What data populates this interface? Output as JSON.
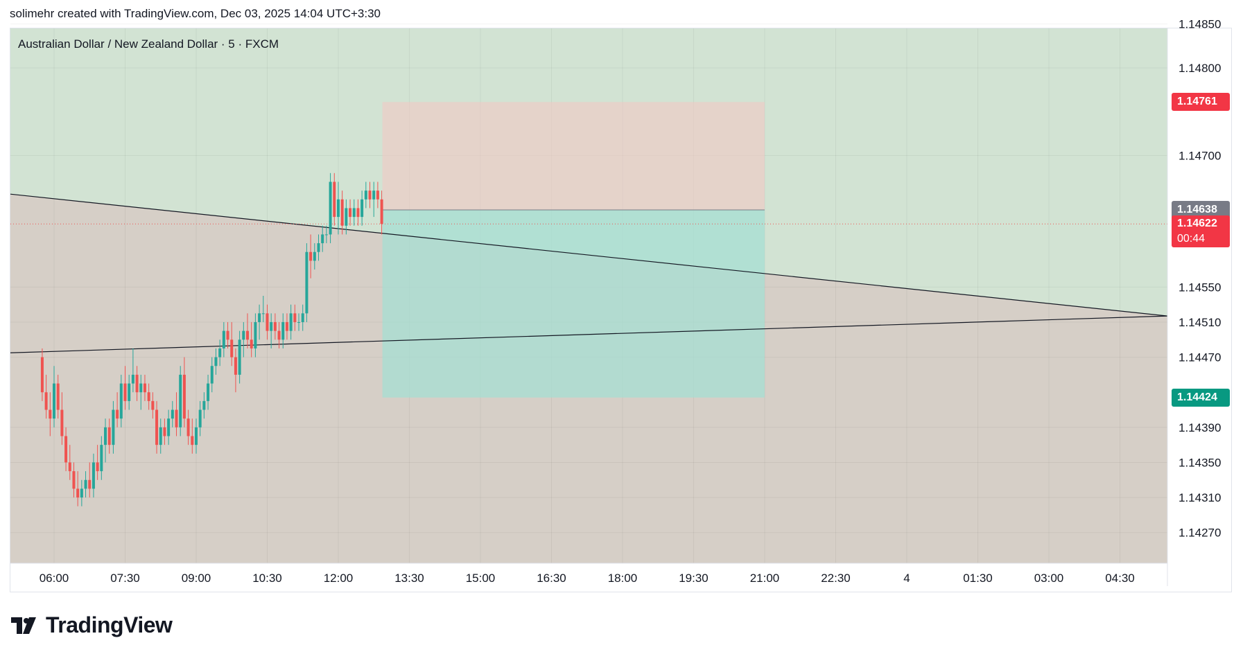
{
  "header": {
    "text": "solimehr created with TradingView.com, Dec 03, 2025 14:04 UTC+3:30"
  },
  "symbol_title": "Australian Dollar / New Zealand Dollar · 5 · FXCM",
  "logo": {
    "text": "TradingView",
    "icon": "tradingview-logo-icon"
  },
  "colors": {
    "up": "#26a69a",
    "down": "#ef5350",
    "stop_zone": "#f4c7c3",
    "target_zone": "#a5dfd3",
    "bg_upper": "#d2e3d3",
    "bg_lower": "#d6cfc7",
    "stop_tag": "#f23645",
    "entry_tag": "#787b86",
    "target_tag": "#089981"
  },
  "price_tags": {
    "stop": {
      "value": "1.14761"
    },
    "entry": {
      "value": "1.14638"
    },
    "last": {
      "value": "1.14622",
      "countdown": "00:44"
    },
    "target": {
      "value": "1.14424"
    }
  },
  "chart_data": {
    "type": "candlestick",
    "title": "Australian Dollar / New Zealand Dollar · 5 · FXCM",
    "y_axis": {
      "side": "right",
      "ticks": [
        "1.14850",
        "1.14800",
        "1.14700",
        "1.14550",
        "1.14510",
        "1.14470",
        "1.14390",
        "1.14350",
        "1.14310",
        "1.14270"
      ]
    },
    "x_axis": {
      "ticks": [
        "06:00",
        "07:30",
        "09:00",
        "10:30",
        "12:00",
        "13:30",
        "15:00",
        "16:30",
        "18:00",
        "19:30",
        "21:00",
        "22:30",
        "4",
        "01:30",
        "03:00",
        "04:30"
      ]
    },
    "ylim": [
      1.14235,
      1.14845
    ],
    "grid": true,
    "series": [
      {
        "ohlc": [
          [
            1.1447,
            1.1448,
            1.1442,
            1.1443
          ],
          [
            1.1443,
            1.1445,
            1.144,
            1.1441
          ],
          [
            1.1441,
            1.1443,
            1.1438,
            1.144
          ],
          [
            1.144,
            1.1446,
            1.1439,
            1.1444
          ],
          [
            1.1444,
            1.1445,
            1.144,
            1.1441
          ],
          [
            1.1441,
            1.1443,
            1.1437,
            1.1438
          ],
          [
            1.1438,
            1.1439,
            1.1434,
            1.1435
          ],
          [
            1.1435,
            1.1437,
            1.1433,
            1.1434
          ],
          [
            1.1434,
            1.1435,
            1.1431,
            1.1432
          ],
          [
            1.1432,
            1.1434,
            1.143,
            1.1431
          ],
          [
            1.1431,
            1.1433,
            1.143,
            1.1432
          ],
          [
            1.1432,
            1.1434,
            1.1431,
            1.1433
          ],
          [
            1.1433,
            1.1435,
            1.1431,
            1.1432
          ],
          [
            1.1432,
            1.1436,
            1.1431,
            1.1435
          ],
          [
            1.1435,
            1.1437,
            1.1433,
            1.1434
          ],
          [
            1.1434,
            1.1438,
            1.1433,
            1.1437
          ],
          [
            1.1437,
            1.144,
            1.1435,
            1.1439
          ],
          [
            1.1439,
            1.144,
            1.1436,
            1.1437
          ],
          [
            1.1437,
            1.1442,
            1.1436,
            1.1441
          ],
          [
            1.1441,
            1.1443,
            1.1439,
            1.144
          ],
          [
            1.144,
            1.1445,
            1.1439,
            1.1444
          ],
          [
            1.1444,
            1.1446,
            1.1441,
            1.1442
          ],
          [
            1.1442,
            1.1445,
            1.1441,
            1.1444
          ],
          [
            1.1444,
            1.1448,
            1.1443,
            1.1445
          ],
          [
            1.1445,
            1.1446,
            1.1442,
            1.1443
          ],
          [
            1.1443,
            1.1445,
            1.1441,
            1.1444
          ],
          [
            1.1444,
            1.1445,
            1.1442,
            1.1443
          ],
          [
            1.1443,
            1.1444,
            1.1441,
            1.1442
          ],
          [
            1.1442,
            1.1443,
            1.144,
            1.1441
          ],
          [
            1.1441,
            1.1442,
            1.1436,
            1.1437
          ],
          [
            1.1437,
            1.144,
            1.1436,
            1.1439
          ],
          [
            1.1439,
            1.144,
            1.1437,
            1.1438
          ],
          [
            1.1438,
            1.1441,
            1.1437,
            1.144
          ],
          [
            1.144,
            1.1442,
            1.1439,
            1.1441
          ],
          [
            1.1441,
            1.1443,
            1.1438,
            1.1439
          ],
          [
            1.1439,
            1.1446,
            1.1438,
            1.1445
          ],
          [
            1.1445,
            1.1447,
            1.1439,
            1.144
          ],
          [
            1.144,
            1.1441,
            1.1437,
            1.1438
          ],
          [
            1.1438,
            1.144,
            1.1436,
            1.1437
          ],
          [
            1.1437,
            1.144,
            1.1436,
            1.1439
          ],
          [
            1.1439,
            1.1442,
            1.1438,
            1.1441
          ],
          [
            1.1441,
            1.1443,
            1.144,
            1.1442
          ],
          [
            1.1442,
            1.1445,
            1.1441,
            1.1444
          ],
          [
            1.1444,
            1.1447,
            1.1443,
            1.1446
          ],
          [
            1.1446,
            1.1448,
            1.1445,
            1.1447
          ],
          [
            1.1447,
            1.1449,
            1.1446,
            1.1448
          ],
          [
            1.1448,
            1.1451,
            1.1447,
            1.145
          ],
          [
            1.145,
            1.1451,
            1.1448,
            1.1449
          ],
          [
            1.1449,
            1.1451,
            1.1446,
            1.1447
          ],
          [
            1.1447,
            1.1448,
            1.1443,
            1.1445
          ],
          [
            1.1445,
            1.145,
            1.1444,
            1.1449
          ],
          [
            1.1449,
            1.1451,
            1.1447,
            1.145
          ],
          [
            1.145,
            1.1452,
            1.1448,
            1.1449
          ],
          [
            1.1449,
            1.1451,
            1.1447,
            1.1448
          ],
          [
            1.1448,
            1.1452,
            1.1447,
            1.1451
          ],
          [
            1.1451,
            1.1453,
            1.1449,
            1.1452
          ],
          [
            1.1452,
            1.1454,
            1.1451,
            1.1452
          ],
          [
            1.1452,
            1.1453,
            1.1449,
            1.145
          ],
          [
            1.145,
            1.1452,
            1.1448,
            1.1451
          ],
          [
            1.1451,
            1.1452,
            1.1449,
            1.145
          ],
          [
            1.145,
            1.1451,
            1.1448,
            1.1449
          ],
          [
            1.1449,
            1.1452,
            1.1448,
            1.1451
          ],
          [
            1.1451,
            1.1452,
            1.1449,
            1.145
          ],
          [
            1.145,
            1.1453,
            1.1449,
            1.1452
          ],
          [
            1.1452,
            1.1453,
            1.145,
            1.1451
          ],
          [
            1.1451,
            1.1452,
            1.145,
            1.1451
          ],
          [
            1.1451,
            1.1453,
            1.145,
            1.1452
          ],
          [
            1.1452,
            1.146,
            1.1451,
            1.1459
          ],
          [
            1.1459,
            1.1461,
            1.1456,
            1.1458
          ],
          [
            1.1458,
            1.146,
            1.1457,
            1.1459
          ],
          [
            1.1459,
            1.1461,
            1.1458,
            1.146
          ],
          [
            1.146,
            1.1462,
            1.1459,
            1.1461
          ],
          [
            1.1461,
            1.1462,
            1.146,
            1.1461
          ],
          [
            1.1461,
            1.1468,
            1.146,
            1.1467
          ],
          [
            1.1467,
            1.1468,
            1.1462,
            1.1463
          ],
          [
            1.1463,
            1.1467,
            1.1461,
            1.1465
          ],
          [
            1.1465,
            1.1466,
            1.1461,
            1.1462
          ],
          [
            1.1462,
            1.1465,
            1.1461,
            1.1464
          ],
          [
            1.1464,
            1.1465,
            1.1462,
            1.1463
          ],
          [
            1.1463,
            1.1465,
            1.1462,
            1.1464
          ],
          [
            1.1464,
            1.1465,
            1.1462,
            1.1463
          ],
          [
            1.1463,
            1.1466,
            1.1462,
            1.1465
          ],
          [
            1.1465,
            1.1467,
            1.1464,
            1.1466
          ],
          [
            1.1466,
            1.1467,
            1.1464,
            1.1465
          ],
          [
            1.1465,
            1.1467,
            1.1463,
            1.1466
          ],
          [
            1.1466,
            1.1467,
            1.1464,
            1.1465
          ],
          [
            1.1465,
            1.1466,
            1.1461,
            1.14622
          ]
        ]
      }
    ],
    "position": {
      "entry": 1.14638,
      "stop": 1.14761,
      "target": 1.14424
    },
    "trendlines": [
      {
        "from": [
          "05:45",
          1.14656
        ],
        "to": [
          "04:30 (+1d)",
          1.14517
        ]
      },
      {
        "from": [
          "05:45",
          1.14475
        ],
        "to": [
          "04:30 (+1d)",
          1.14517
        ]
      }
    ],
    "last_price_line": 1.14622
  }
}
